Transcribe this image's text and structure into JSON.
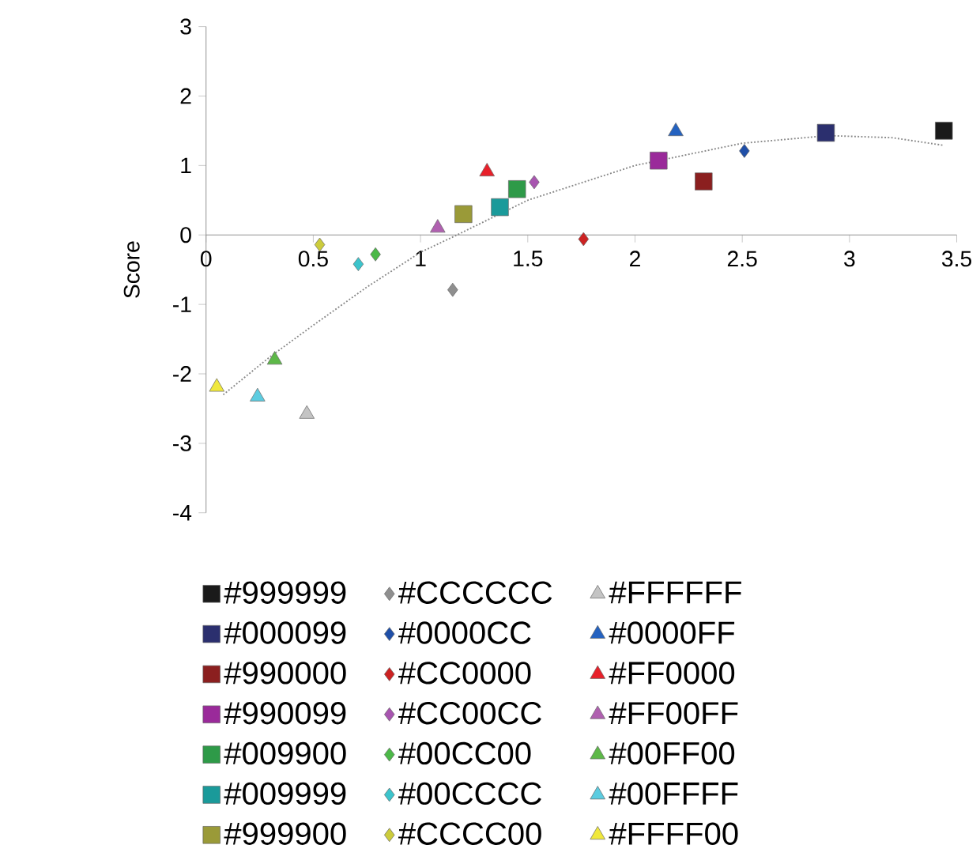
{
  "chart_data": {
    "type": "scatter",
    "ylabel": "Score",
    "xlim": [
      0,
      3.5
    ],
    "ylim": [
      -4,
      3
    ],
    "xticks": [
      0,
      0.5,
      1,
      1.5,
      2,
      2.5,
      3,
      3.5
    ],
    "yticks": [
      -4,
      -3,
      -2,
      -1,
      0,
      1,
      2,
      3
    ],
    "grid": false,
    "legend": "bottom",
    "series": [
      {
        "name": "#999999",
        "color": "#1a1a1a",
        "marker": "square",
        "x": [
          3.44
        ],
        "values": [
          1.5
        ]
      },
      {
        "name": "#CCCCCC",
        "color": "#8f8f8f",
        "marker": "diamond",
        "x": [
          1.15
        ],
        "values": [
          -0.79
        ]
      },
      {
        "name": "#FFFFFF",
        "color": "#c4c4c4",
        "marker": "triangle",
        "x": [
          0.47
        ],
        "values": [
          -2.58
        ]
      },
      {
        "name": "#000099",
        "color": "#2b2f6e",
        "marker": "square",
        "x": [
          2.89
        ],
        "values": [
          1.47
        ]
      },
      {
        "name": "#0000CC",
        "color": "#1f4fa8",
        "marker": "diamond",
        "x": [
          2.51
        ],
        "values": [
          1.21
        ]
      },
      {
        "name": "#0000FF",
        "color": "#2462c0",
        "marker": "triangle",
        "x": [
          2.19
        ],
        "values": [
          1.49
        ]
      },
      {
        "name": "#990000",
        "color": "#8b1f1f",
        "marker": "square",
        "x": [
          2.32
        ],
        "values": [
          0.77
        ]
      },
      {
        "name": "#CC0000",
        "color": "#cc2222",
        "marker": "diamond",
        "x": [
          1.76
        ],
        "values": [
          -0.06
        ]
      },
      {
        "name": "#FF0000",
        "color": "#e8202a",
        "marker": "triangle",
        "x": [
          1.31
        ],
        "values": [
          0.91
        ]
      },
      {
        "name": "#990099",
        "color": "#9a2a9a",
        "marker": "square",
        "x": [
          2.11
        ],
        "values": [
          1.07
        ]
      },
      {
        "name": "#CC00CC",
        "color": "#a855b0",
        "marker": "diamond",
        "x": [
          1.53
        ],
        "values": [
          0.76
        ]
      },
      {
        "name": "#FF00FF",
        "color": "#b060b0",
        "marker": "triangle",
        "x": [
          1.08
        ],
        "values": [
          0.1
        ]
      },
      {
        "name": "#009900",
        "color": "#2e9a48",
        "marker": "square",
        "x": [
          1.45
        ],
        "values": [
          0.66
        ]
      },
      {
        "name": "#00CC00",
        "color": "#4cb848",
        "marker": "diamond",
        "x": [
          0.79
        ],
        "values": [
          -0.28
        ]
      },
      {
        "name": "#00FF00",
        "color": "#5db848",
        "marker": "triangle",
        "x": [
          0.32
        ],
        "values": [
          -1.8
        ]
      },
      {
        "name": "#009999",
        "color": "#1a9a9a",
        "marker": "square",
        "x": [
          1.37
        ],
        "values": [
          0.4
        ]
      },
      {
        "name": "#00CCCC",
        "color": "#3cc4cc",
        "marker": "diamond",
        "x": [
          0.71
        ],
        "values": [
          -0.42
        ]
      },
      {
        "name": "#00FFFF",
        "color": "#5ccce0",
        "marker": "triangle",
        "x": [
          0.24
        ],
        "values": [
          -2.33
        ]
      },
      {
        "name": "#999900",
        "color": "#9a9a38",
        "marker": "square",
        "x": [
          1.2
        ],
        "values": [
          0.3
        ]
      },
      {
        "name": "#CCCC00",
        "color": "#cccc3c",
        "marker": "diamond",
        "x": [
          0.53
        ],
        "values": [
          -0.14
        ]
      },
      {
        "name": "#FFFF00",
        "color": "#f0e83c",
        "marker": "triangle",
        "x": [
          0.05
        ],
        "values": [
          -2.19
        ]
      },
      {
        "type": "line",
        "color": "#888888",
        "line_style": "dotted",
        "marker": "none",
        "x": [
          0.08,
          0.3,
          0.5,
          0.75,
          1.0,
          1.17,
          1.5,
          2.0,
          2.5,
          2.9,
          3.2,
          3.44
        ],
        "values": [
          -2.3,
          -1.75,
          -1.3,
          -0.75,
          -0.25,
          0,
          0.5,
          1.0,
          1.32,
          1.43,
          1.4,
          1.29
        ]
      }
    ]
  }
}
